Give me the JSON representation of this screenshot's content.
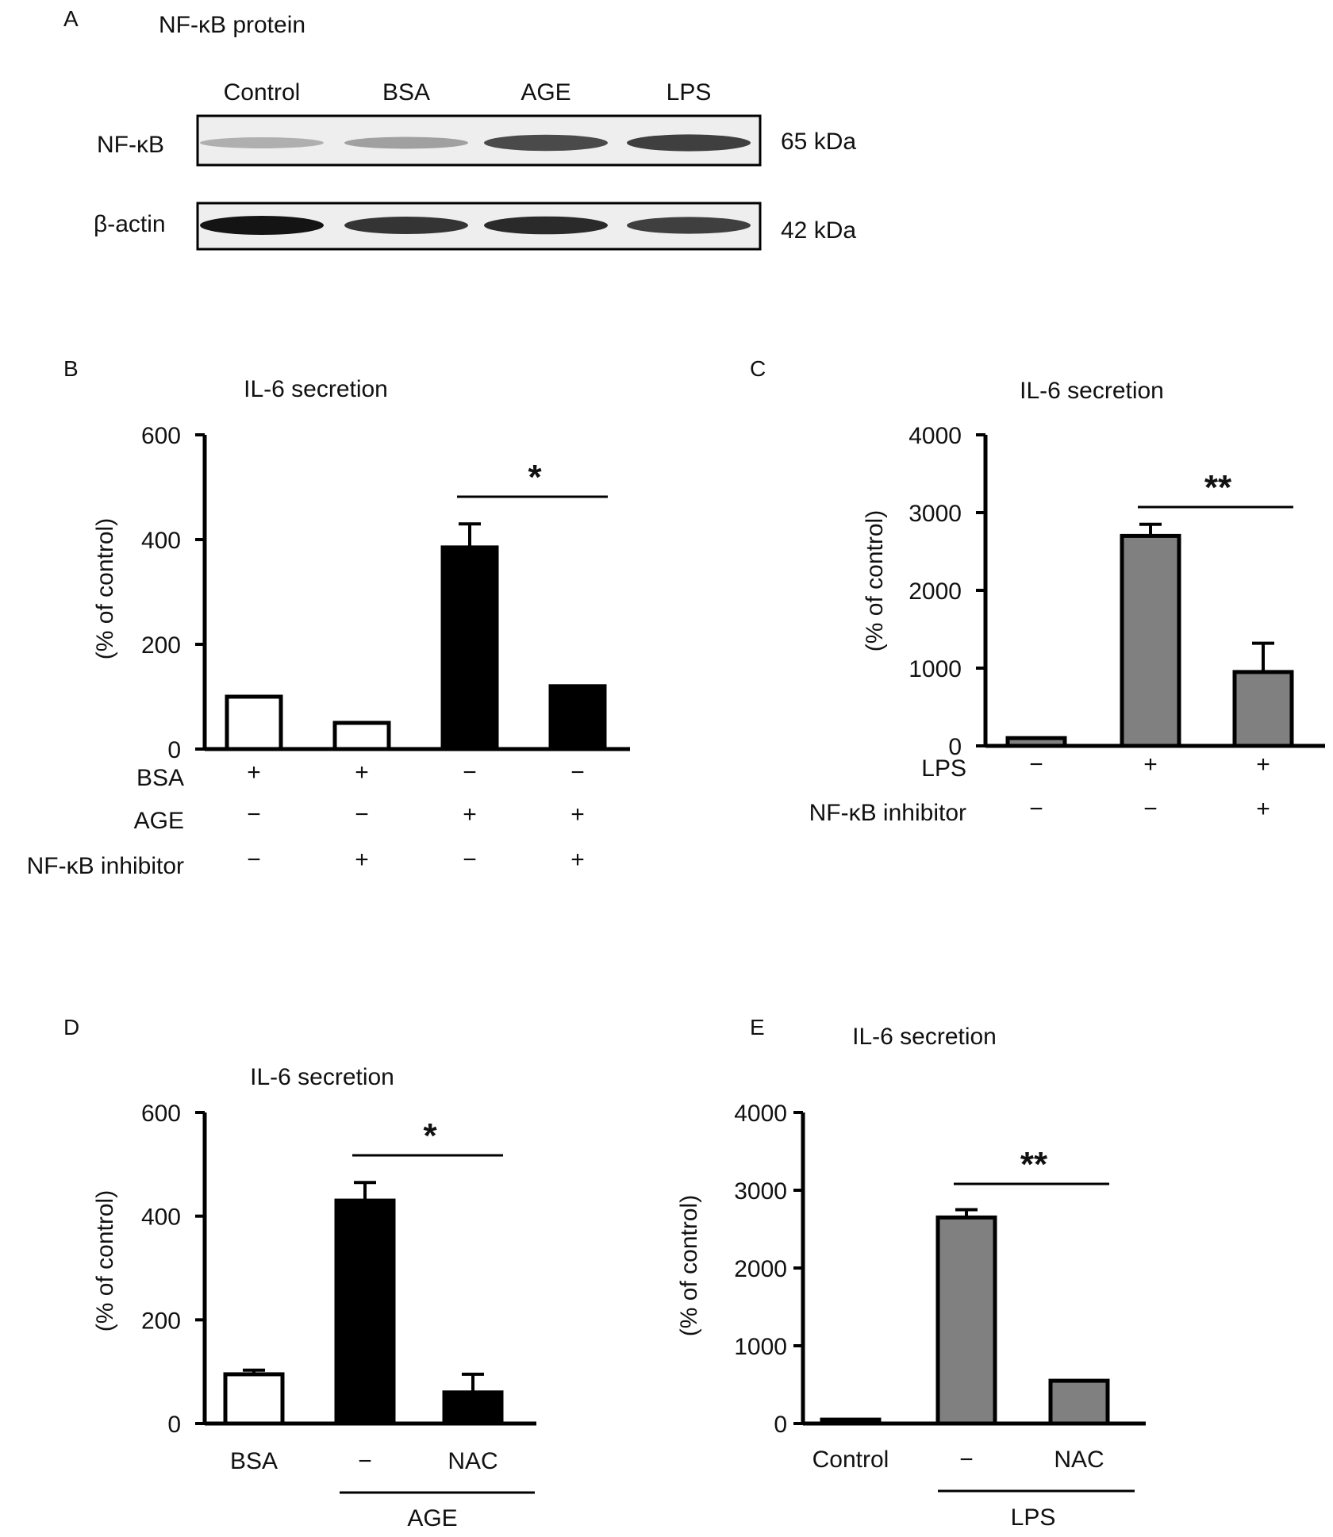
{
  "blot": {
    "panel_label": "A",
    "title": "NF-κB protein",
    "lanes": [
      "Control",
      "BSA",
      "AGE",
      "LPS"
    ],
    "rows": [
      {
        "label": "NF-κB",
        "size": "65 kDa",
        "relative_intensity": [
          0.28,
          0.35,
          0.75,
          0.8
        ]
      },
      {
        "label": "β-actin",
        "size": "42 kDa",
        "relative_intensity": [
          1.0,
          0.85,
          0.9,
          0.8
        ]
      }
    ]
  },
  "chart_data": [
    {
      "panel_label": "B",
      "type": "bar",
      "title": "IL-6 secretion",
      "ylabel": "(% of control)",
      "ylim": [
        0,
        600
      ],
      "yticks": [
        0,
        200,
        400,
        600
      ],
      "values": [
        100,
        50,
        385,
        120
      ],
      "errors": [
        0,
        0,
        45,
        0
      ],
      "colors": [
        "#ffffff",
        "#ffffff",
        "#000000",
        "#000000"
      ],
      "conditions": [
        {
          "label": "BSA",
          "marks": [
            "+",
            "+",
            "−",
            "−"
          ]
        },
        {
          "label": "AGE",
          "marks": [
            "−",
            "−",
            "+",
            "+"
          ]
        },
        {
          "label": "NF-κB inhibitor",
          "marks": [
            "−",
            "+",
            "−",
            "+"
          ]
        }
      ],
      "significance": {
        "from": 2,
        "to": 3,
        "label": "*"
      }
    },
    {
      "panel_label": "C",
      "type": "bar",
      "title": "IL-6 secretion",
      "ylabel": "(% of control)",
      "ylim": [
        0,
        4000
      ],
      "yticks": [
        0,
        1000,
        2000,
        3000,
        4000
      ],
      "values": [
        100,
        2700,
        950
      ],
      "errors": [
        0,
        150,
        370
      ],
      "colors": [
        "#808080",
        "#808080",
        "#808080"
      ],
      "conditions": [
        {
          "label": "LPS",
          "marks": [
            "−",
            "+",
            "+"
          ]
        },
        {
          "label": "NF-κB inhibitor",
          "marks": [
            "−",
            "−",
            "+"
          ]
        }
      ],
      "significance": {
        "from": 1,
        "to": 2,
        "label": "**"
      }
    },
    {
      "panel_label": "D",
      "type": "bar",
      "title": "IL-6 secretion",
      "ylabel": "(% of control)",
      "ylim": [
        0,
        600
      ],
      "yticks": [
        0,
        200,
        400,
        600
      ],
      "categories": [
        "BSA",
        "−",
        "NAC"
      ],
      "group_label": "AGE",
      "values": [
        95,
        430,
        60
      ],
      "errors": [
        8,
        35,
        35
      ],
      "colors": [
        "#ffffff",
        "#000000",
        "#000000"
      ],
      "significance": {
        "from": 1,
        "to": 2,
        "label": "*"
      }
    },
    {
      "panel_label": "E",
      "type": "bar",
      "title": "IL-6 secretion",
      "ylabel": "(% of control)",
      "ylim": [
        0,
        4000
      ],
      "yticks": [
        0,
        1000,
        2000,
        3000,
        4000
      ],
      "categories": [
        "Control",
        "−",
        "NAC"
      ],
      "group_label": "LPS",
      "values": [
        50,
        2650,
        550
      ],
      "errors": [
        0,
        100,
        0
      ],
      "colors": [
        "#808080",
        "#808080",
        "#808080"
      ],
      "significance": {
        "from": 1,
        "to": 2,
        "label": "**"
      }
    }
  ]
}
